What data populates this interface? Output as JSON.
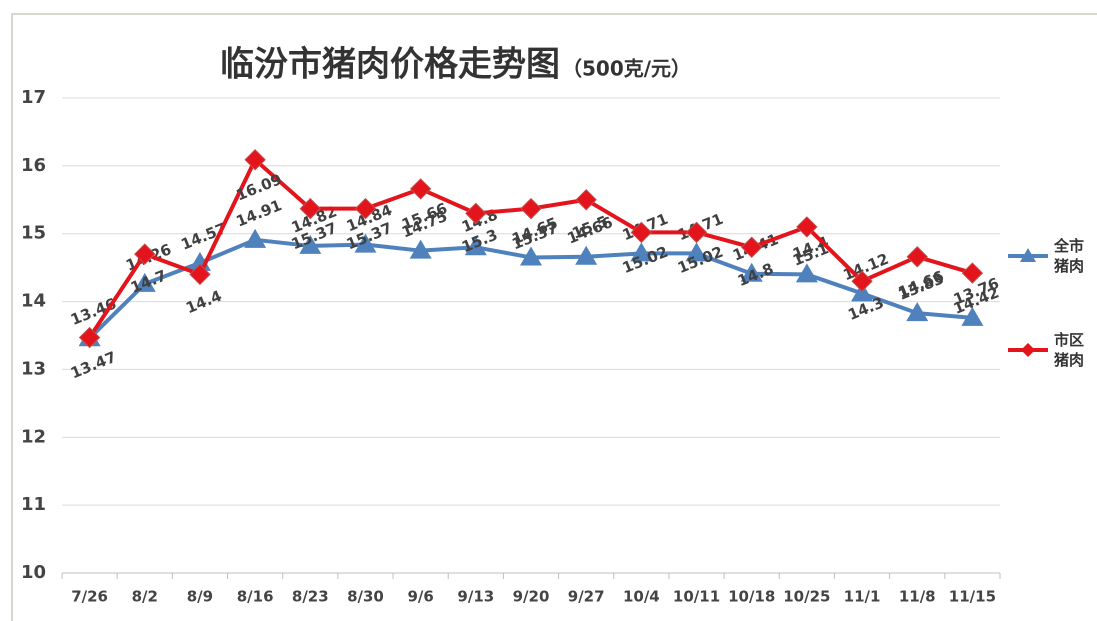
{
  "chart_data": {
    "type": "line",
    "title": "临汾市猪肉价格走势图",
    "subtitle": "（500克/元）",
    "categories": [
      "7/26",
      "8/2",
      "8/9",
      "8/16",
      "8/23",
      "8/30",
      "9/6",
      "9/13",
      "9/20",
      "9/27",
      "10/4",
      "10/11",
      "10/18",
      "10/25",
      "11/1",
      "11/8",
      "11/15"
    ],
    "series": [
      {
        "name": "全市猪肉",
        "color": "#4f81bd",
        "marker": "triangle",
        "values": [
          13.46,
          14.26,
          14.57,
          14.91,
          14.82,
          14.84,
          14.75,
          14.8,
          14.65,
          14.66,
          14.71,
          14.71,
          14.41,
          14.4,
          14.12,
          13.83,
          13.76
        ]
      },
      {
        "name": "市区猪肉",
        "color": "#e3141b",
        "marker": "diamond",
        "values": [
          13.47,
          14.7,
          14.4,
          16.09,
          15.37,
          15.37,
          15.66,
          15.3,
          15.37,
          15.5,
          15.02,
          15.02,
          14.8,
          15.1,
          14.3,
          14.66,
          14.42
        ]
      }
    ],
    "ylim": [
      10,
      17
    ],
    "yticks": [
      10,
      11,
      12,
      13,
      14,
      15,
      16,
      17
    ],
    "grid": true,
    "legend": "right"
  }
}
